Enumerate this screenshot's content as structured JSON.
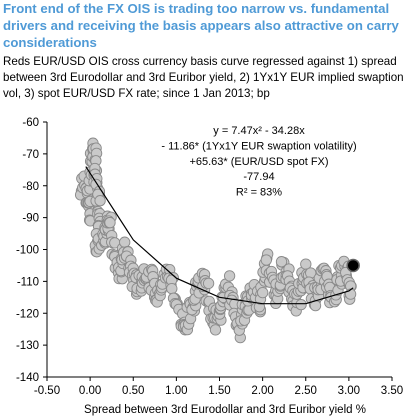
{
  "chart_data": {
    "type": "scatter",
    "title": "Front end of the FX OIS is trading too narrow vs. fundamental drivers and receiving the basis appears also attractive on carry considerations",
    "subtitle": "Reds EUR/USD OIS cross currency basis curve regressed against 1) spread between 3rd Eurodollar and 3rd Euribor yield, 2) 1Yx1Y EUR implied swaption vol, 3) spot EUR/USD FX rate; since 1 Jan 2013; bp",
    "xlabel": "Spread between 3rd Eurodollar and 3rd Euribor yield %",
    "ylabel": "",
    "xlim": [
      -0.5,
      3.5
    ],
    "ylim": [
      -140,
      -60
    ],
    "x_ticks": [
      "-0.50",
      "0.00",
      "0.50",
      "1.00",
      "1.50",
      "2.00",
      "2.50",
      "3.00",
      "3.50"
    ],
    "y_ticks": [
      "-60",
      "-70",
      "-80",
      "-90",
      "-100",
      "-110",
      "-120",
      "-130",
      "-140"
    ],
    "annotation_lines": [
      "y = 7.47x² - 34.28x",
      "- 11.86* (1Yx1Y EUR swaption volatility)",
      "+65.63* (EUR/USD spot FX)",
      "-77.94",
      "R² = 83%"
    ],
    "series": [
      {
        "points": [
          [
            -0.1,
            -82
          ],
          [
            -0.05,
            -78
          ],
          [
            -0.02,
            -85
          ],
          [
            0.0,
            -90
          ],
          [
            0.02,
            -72
          ],
          [
            0.03,
            -68
          ],
          [
            0.05,
            -70
          ],
          [
            0.06,
            -76
          ],
          [
            0.08,
            -80
          ],
          [
            0.1,
            -84
          ],
          [
            0.12,
            -88
          ],
          [
            0.14,
            -92
          ],
          [
            0.1,
            -96
          ],
          [
            0.08,
            -100
          ],
          [
            0.15,
            -98
          ],
          [
            0.18,
            -95
          ],
          [
            0.2,
            -93
          ],
          [
            0.22,
            -90
          ],
          [
            0.25,
            -96
          ],
          [
            0.3,
            -103
          ],
          [
            0.35,
            -107
          ],
          [
            0.38,
            -103
          ],
          [
            0.4,
            -100
          ],
          [
            0.45,
            -104
          ],
          [
            0.5,
            -109
          ],
          [
            0.55,
            -112
          ],
          [
            0.6,
            -110
          ],
          [
            0.65,
            -106
          ],
          [
            0.7,
            -109
          ],
          [
            0.75,
            -113
          ],
          [
            0.8,
            -115
          ],
          [
            0.85,
            -111
          ],
          [
            0.9,
            -107
          ],
          [
            0.95,
            -110
          ],
          [
            1.0,
            -116
          ],
          [
            1.05,
            -122
          ],
          [
            1.1,
            -126
          ],
          [
            1.15,
            -121
          ],
          [
            1.2,
            -116
          ],
          [
            1.25,
            -112
          ],
          [
            1.3,
            -108
          ],
          [
            1.35,
            -113
          ],
          [
            1.4,
            -120
          ],
          [
            1.45,
            -124
          ],
          [
            1.5,
            -119
          ],
          [
            1.55,
            -114
          ],
          [
            1.6,
            -111
          ],
          [
            1.65,
            -116
          ],
          [
            1.7,
            -126
          ],
          [
            1.75,
            -122
          ],
          [
            1.8,
            -118
          ],
          [
            1.85,
            -115
          ],
          [
            1.9,
            -112
          ],
          [
            1.95,
            -117
          ],
          [
            2.0,
            -113
          ],
          [
            2.05,
            -104
          ],
          [
            2.1,
            -109
          ],
          [
            2.15,
            -115
          ],
          [
            2.2,
            -110
          ],
          [
            2.25,
            -105
          ],
          [
            2.3,
            -109
          ],
          [
            2.35,
            -114
          ],
          [
            2.4,
            -118
          ],
          [
            2.45,
            -112
          ],
          [
            2.5,
            -107
          ],
          [
            2.55,
            -110
          ],
          [
            2.6,
            -116
          ],
          [
            2.65,
            -113
          ],
          [
            2.7,
            -108
          ],
          [
            2.75,
            -111
          ],
          [
            2.8,
            -115
          ],
          [
            2.85,
            -112
          ],
          [
            2.9,
            -108
          ],
          [
            2.95,
            -106
          ],
          [
            3.0,
            -110
          ],
          [
            3.02,
            -114
          ]
        ]
      },
      {
        "latest": [
          3.05,
          -105
        ]
      }
    ],
    "fit_curve": [
      [
        -0.05,
        -74
      ],
      [
        0.5,
        -97
      ],
      [
        1.0,
        -109
      ],
      [
        1.5,
        -115
      ],
      [
        2.0,
        -117
      ],
      [
        2.5,
        -117
      ],
      [
        3.0,
        -113
      ],
      [
        3.05,
        -112
      ]
    ],
    "grid": false,
    "legend": "none"
  }
}
